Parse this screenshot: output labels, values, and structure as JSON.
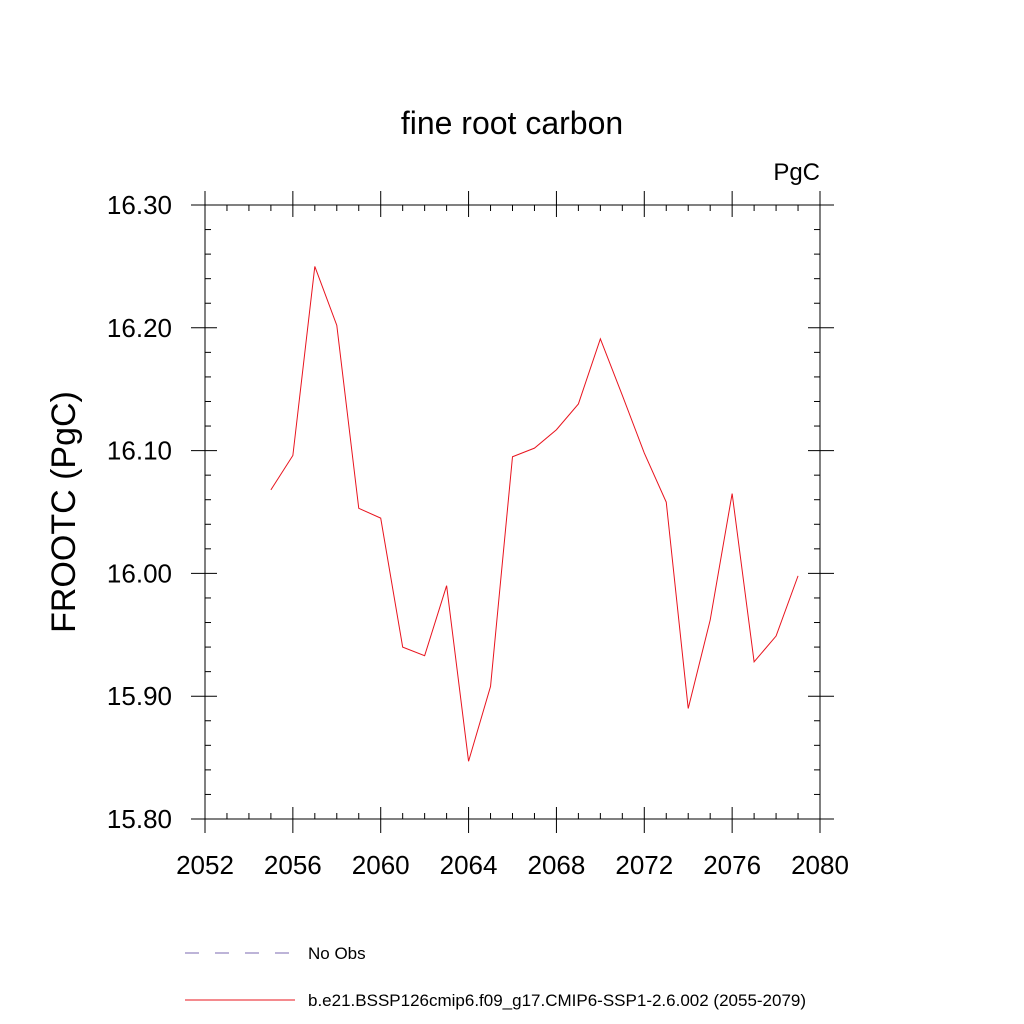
{
  "chart_data": {
    "type": "line",
    "title": "fine root carbon",
    "units_label": "PgC",
    "ylabel": "FROOTC  (PgC)",
    "xlabel": "",
    "xlim": [
      2052,
      2080
    ],
    "ylim": [
      15.8,
      16.3
    ],
    "x_ticks": [
      "2052",
      "2056",
      "2060",
      "2064",
      "2068",
      "2072",
      "2076",
      "2080"
    ],
    "y_ticks": [
      "15.80",
      "15.90",
      "16.00",
      "16.10",
      "16.20",
      "16.30"
    ],
    "x": [
      2055,
      2056,
      2057,
      2058,
      2059,
      2060,
      2061,
      2062,
      2063,
      2064,
      2065,
      2066,
      2067,
      2068,
      2069,
      2070,
      2071,
      2072,
      2073,
      2074,
      2075,
      2076,
      2077,
      2078,
      2079
    ],
    "series": [
      {
        "name": "b.e21.BSSP126cmip6.f09_g17.CMIP6-SSP1-2.6.002 (2055-2079)",
        "color": "#e8141e",
        "values": [
          16.068,
          16.096,
          16.25,
          16.202,
          16.053,
          16.045,
          15.94,
          15.933,
          15.99,
          15.847,
          15.908,
          16.095,
          16.102,
          16.117,
          16.138,
          16.191,
          16.145,
          16.098,
          16.058,
          15.89,
          15.962,
          16.065,
          15.928,
          15.949,
          15.998
        ]
      }
    ],
    "legend": {
      "placement": "bottom",
      "entries": [
        {
          "label": "No Obs",
          "color": "#7b68b0",
          "dash": "dashed"
        },
        {
          "label": "b.e21.BSSP126cmip6.f09_g17.CMIP6-SSP1-2.6.002 (2055-2079)",
          "color": "#e8141e",
          "dash": "solid"
        }
      ]
    },
    "grid": false
  }
}
